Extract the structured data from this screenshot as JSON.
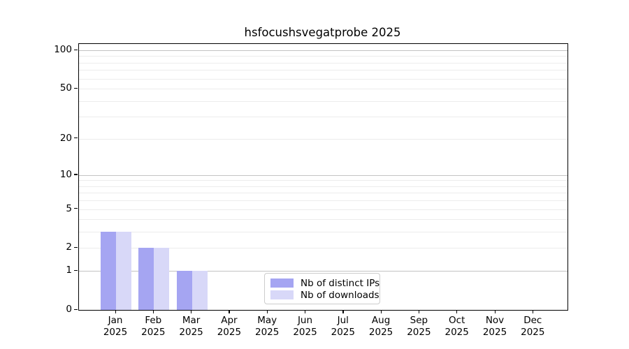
{
  "chart_data": {
    "type": "bar",
    "title": "hsfocushsvegatprobe 2025",
    "categories": [
      "Jan",
      "Feb",
      "Mar",
      "Apr",
      "May",
      "Jun",
      "Jul",
      "Aug",
      "Sep",
      "Oct",
      "Nov",
      "Dec"
    ],
    "x_year_label": "2025",
    "series": [
      {
        "name": "Nb of distinct IPs",
        "color": "#a5a5f2",
        "values": [
          3,
          2,
          1,
          0,
          0,
          0,
          0,
          0,
          0,
          0,
          0,
          0
        ]
      },
      {
        "name": "Nb of downloads",
        "color": "#d8d8f8",
        "values": [
          3,
          2,
          1,
          0,
          0,
          0,
          0,
          0,
          0,
          0,
          0,
          0
        ]
      }
    ],
    "y_ticks": [
      0,
      1,
      2,
      5,
      10,
      20,
      50,
      100
    ],
    "grid_minor": [
      2,
      3,
      4,
      5,
      6,
      7,
      8,
      9,
      20,
      30,
      40,
      50,
      60,
      70,
      80,
      90
    ],
    "grid_major": [
      1,
      10,
      100
    ],
    "scale": "log1p",
    "ylim": [
      0,
      112
    ],
    "grid": "horizontal",
    "legend_position": "lower-center-inside"
  },
  "colors": {
    "background": "#ffffff",
    "spine": "#000000",
    "grid_minor": "#ececec",
    "grid_major": "#c3c3c3",
    "legend_border": "#cccccc",
    "text": "#000000"
  }
}
